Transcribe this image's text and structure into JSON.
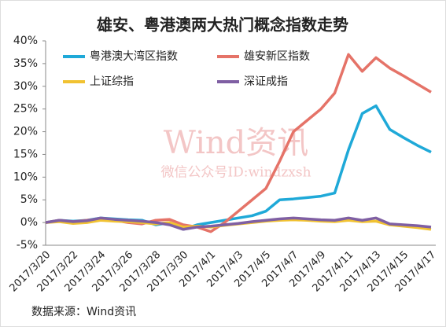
{
  "chart_data": {
    "type": "line",
    "title": "雄安、粤港澳两大热门概念指数走势",
    "watermark": "Wind资讯",
    "watermark_sub": "微信公众号ID:windzxsh",
    "source": "数据来源：Wind资讯",
    "categories": [
      "2017/3/20",
      null,
      "2017/3/22",
      null,
      "2017/3/24",
      null,
      "2017/3/26",
      null,
      "2017/3/28",
      null,
      "2017/3/30",
      null,
      "2017/4/1",
      null,
      "2017/4/3",
      null,
      "2017/4/5",
      null,
      "2017/4/7",
      null,
      "2017/4/9",
      null,
      "2017/4/11",
      null,
      "2017/4/13",
      null,
      "2017/4/15",
      null,
      "2017/4/17"
    ],
    "series": [
      {
        "name": "粤港澳大湾区指数",
        "color": "#1fa9d8",
        "values": [
          0,
          0.5,
          0.3,
          0.5,
          1.0,
          0.8,
          0.6,
          0.5,
          -0.5,
          0,
          -1.5,
          -0.5,
          0,
          0.5,
          1,
          1.5,
          2.5,
          5,
          5.2,
          5.5,
          5.8,
          6.5,
          16,
          24,
          25.7,
          20.5,
          18.7,
          17,
          15.5
        ]
      },
      {
        "name": "雄安新区指数",
        "color": "#e57368",
        "values": [
          0,
          0.5,
          0.2,
          0.5,
          0.8,
          0.5,
          0,
          -0.3,
          0.5,
          0.7,
          -0.5,
          -1,
          -2,
          0,
          2.5,
          5,
          7.5,
          13.5,
          20,
          22.5,
          25,
          28.5,
          37,
          33.3,
          36.3,
          34,
          32.3,
          30.5,
          28.7
        ]
      },
      {
        "name": "上证综指",
        "color": "#f1c232",
        "values": [
          0,
          0.2,
          -0.2,
          0,
          0.5,
          0.3,
          0.2,
          0,
          -0.3,
          0,
          -1,
          -0.8,
          -1,
          -0.6,
          -0.3,
          0,
          0.3,
          0.5,
          0.6,
          0.5,
          0.3,
          0.2,
          0.5,
          0.2,
          0.3,
          -0.5,
          -0.8,
          -1.1,
          -1.5
        ]
      },
      {
        "name": "深证成指",
        "color": "#7f5fa3",
        "values": [
          0,
          0.5,
          0.2,
          0.4,
          1.0,
          0.7,
          0.5,
          0.3,
          0,
          -0.5,
          -1.5,
          -1,
          -0.8,
          -0.5,
          -0.2,
          0.2,
          0.5,
          0.8,
          1,
          0.8,
          0.6,
          0.5,
          1,
          0.5,
          1.0,
          -0.3,
          -0.5,
          -0.7,
          -1
        ]
      }
    ],
    "ylim": [
      -5,
      40
    ],
    "yticks": [
      {
        "value": -5,
        "label": "-5%"
      },
      {
        "value": 0,
        "label": "0%"
      },
      {
        "value": 5,
        "label": "5%"
      },
      {
        "value": 10,
        "label": "10%"
      },
      {
        "value": 15,
        "label": "15%"
      },
      {
        "value": 20,
        "label": "20%"
      },
      {
        "value": 25,
        "label": "25%"
      },
      {
        "value": 30,
        "label": "30%"
      },
      {
        "value": 35,
        "label": "35%"
      },
      {
        "value": 40,
        "label": "40%"
      }
    ],
    "grid": false
  }
}
